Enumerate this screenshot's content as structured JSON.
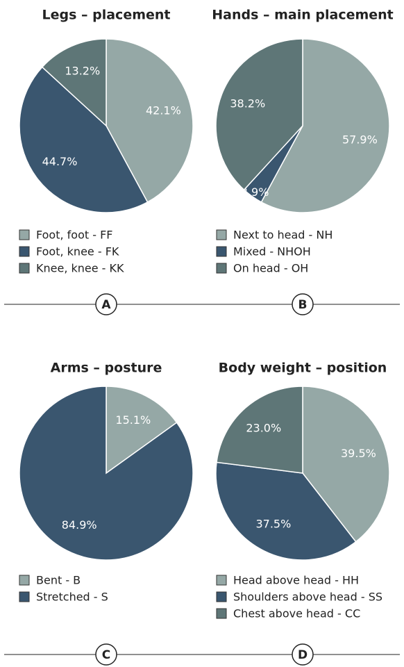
{
  "chart_data": [
    {
      "type": "pie",
      "title": "Legs – placement",
      "panel": "A",
      "categories": [
        "Foot, foot - FF",
        "Foot, knee - FK",
        "Knee, knee - KK"
      ],
      "values": [
        42.1,
        44.7,
        13.2
      ],
      "value_labels": [
        "42.1%",
        "44.7%",
        "13.2%"
      ],
      "colors": [
        "#95a8a6",
        "#3a566f",
        "#5e7677"
      ]
    },
    {
      "type": "pie",
      "title": "Hands – main placement",
      "panel": "B",
      "categories": [
        "Next to head - NH",
        "Mixed - NHOH",
        "On head - OH"
      ],
      "values": [
        57.9,
        3.9,
        38.2
      ],
      "value_labels": [
        "57.9%",
        "3.9%",
        "38.2%"
      ],
      "colors": [
        "#95a8a6",
        "#3a566f",
        "#5e7677"
      ]
    },
    {
      "type": "pie",
      "title": "Arms – posture",
      "panel": "C",
      "categories": [
        "Bent - B",
        "Stretched - S"
      ],
      "values": [
        15.1,
        84.9
      ],
      "value_labels": [
        "15.1%",
        "84.9%"
      ],
      "colors": [
        "#95a8a6",
        "#3a566f"
      ]
    },
    {
      "type": "pie",
      "title": "Body weight – position",
      "panel": "D",
      "categories": [
        "Head above head - HH",
        "Shoulders above head - SS",
        "Chest above head - CC"
      ],
      "values": [
        39.5,
        37.5,
        23.0
      ],
      "value_labels": [
        "39.5%",
        "37.5%",
        "23.0%"
      ],
      "colors": [
        "#95a8a6",
        "#3a566f",
        "#5e7677"
      ]
    }
  ]
}
